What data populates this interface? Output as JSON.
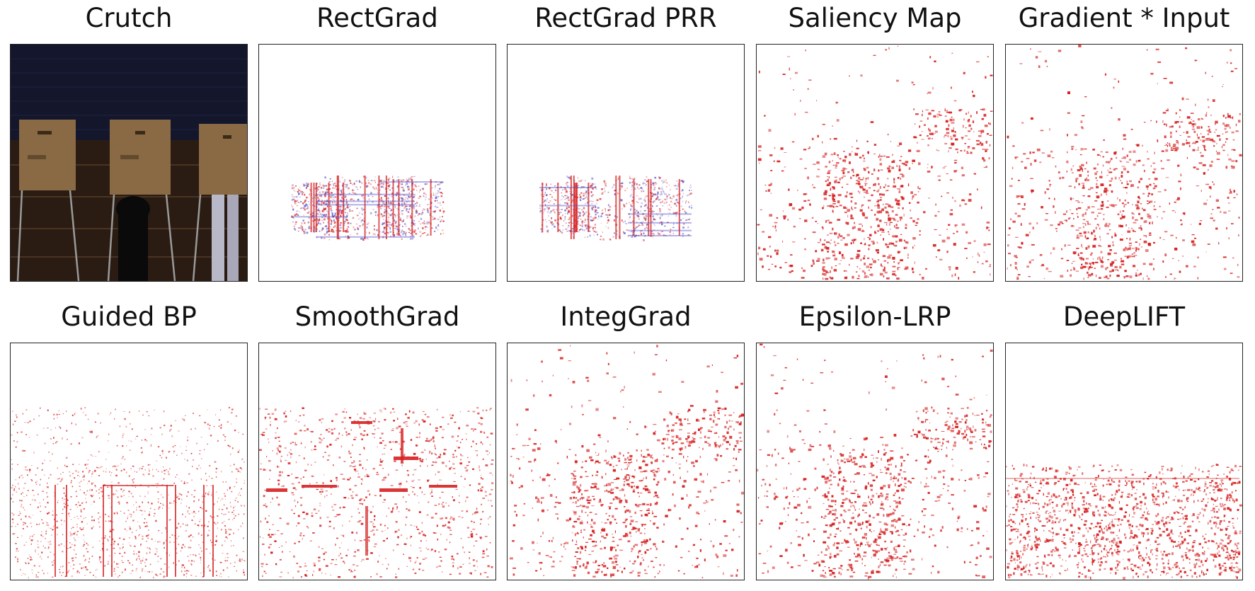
{
  "figure": {
    "colors": {
      "positive": "#d62020",
      "negative": "#5555cc",
      "photo_wall": "#14172b",
      "photo_booth": "#8a6a45",
      "photo_floor": "#2a1c12"
    },
    "rows": [
      {
        "panels": [
          {
            "title": "Crutch",
            "kind": "photo"
          },
          {
            "title": "RectGrad",
            "kind": "map",
            "pattern": "rectgrad"
          },
          {
            "title": "RectGrad PRR",
            "kind": "map",
            "pattern": "rectgrad-prr"
          },
          {
            "title": "Saliency Map",
            "kind": "map",
            "pattern": "scatter-scene"
          },
          {
            "title": "Gradient * Input",
            "kind": "map",
            "pattern": "scatter-scene"
          }
        ]
      },
      {
        "panels": [
          {
            "title": "Guided BP",
            "kind": "map",
            "pattern": "guided-bp"
          },
          {
            "title": "SmoothGrad",
            "kind": "map",
            "pattern": "smoothgrad"
          },
          {
            "title": "IntegGrad",
            "kind": "map",
            "pattern": "scatter-scene"
          },
          {
            "title": "Epsilon-LRP",
            "kind": "map",
            "pattern": "scatter-scene"
          },
          {
            "title": "DeepLIFT",
            "kind": "map",
            "pattern": "deeplift"
          }
        ]
      }
    ]
  }
}
